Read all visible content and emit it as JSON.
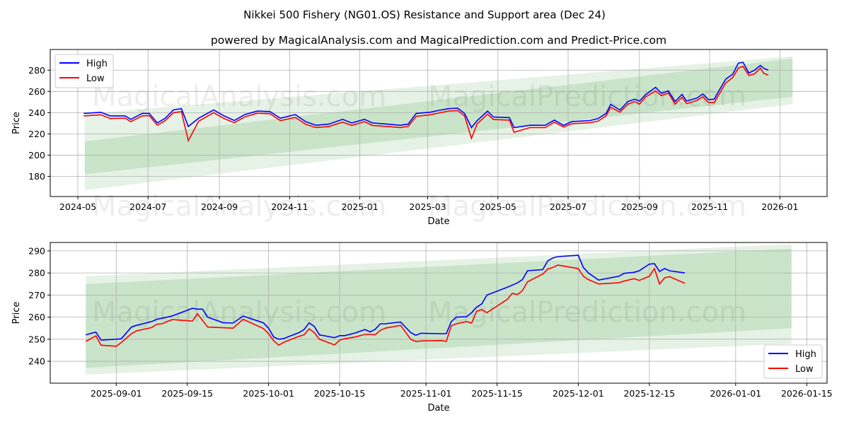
{
  "title": "Nikkei 500 Fishery (NG01.OS) Resistance and Support area (Dec 24)",
  "subtitle": "powered by MagicalAnalysis.com and MagicalPrediction.com and Predict-Price.com",
  "watermarks": [
    "MagicalAnalysis.com",
    "MagicalPrediction.com"
  ],
  "colors": {
    "high": "#0000ff",
    "low": "#ff0000",
    "band": "#008000"
  },
  "chart_data": [
    {
      "type": "line",
      "xlabel": "Date",
      "ylabel": "Price",
      "xlim": [
        "2024-04-07",
        "2026-02-11"
      ],
      "ylim": [
        161,
        299.5
      ],
      "yticks": [
        180,
        200,
        220,
        240,
        260,
        280
      ],
      "xticks": [
        "2024-05",
        "2024-07",
        "2024-09",
        "2024-11",
        "2025-01",
        "2025-03",
        "2025-05",
        "2025-07",
        "2025-09",
        "2025-11",
        "2026-01"
      ],
      "grid": true,
      "legend": {
        "position": "top-left",
        "entries": [
          "High",
          "Low"
        ]
      },
      "bands": {
        "dates": [
          "2024-05-07",
          "2026-01-12"
        ],
        "outer_upper": [
          239,
          293
        ],
        "inner_upper": [
          213,
          291
        ],
        "inner_lower": [
          182,
          255
        ],
        "outer_lower": [
          167,
          248
        ]
      },
      "series_points": [
        [
          "2024-05-06",
          239.3,
          237
        ],
        [
          "2024-05-21",
          240.4,
          238
        ],
        [
          "2024-05-29",
          237,
          234.5
        ],
        [
          "2024-06-11",
          237,
          234.8
        ],
        [
          "2024-06-16",
          233.7,
          231.5
        ],
        [
          "2024-06-26",
          239.3,
          237
        ],
        [
          "2024-07-02",
          239.3,
          237.2
        ],
        [
          "2024-07-09",
          230.3,
          228.2
        ],
        [
          "2024-07-16",
          234.8,
          232.5
        ],
        [
          "2024-07-23",
          242.6,
          240
        ],
        [
          "2024-07-30",
          243.8,
          241
        ],
        [
          "2024-08-05",
          227,
          213.6
        ],
        [
          "2024-08-14",
          234.8,
          232
        ],
        [
          "2024-08-27",
          242.6,
          240
        ],
        [
          "2024-09-05",
          237,
          234.5
        ],
        [
          "2024-09-14",
          232.6,
          230.5
        ],
        [
          "2024-09-23",
          238.2,
          236
        ],
        [
          "2024-10-04",
          241.5,
          239.5
        ],
        [
          "2024-10-15",
          241,
          239
        ],
        [
          "2024-10-24",
          234.8,
          232.5
        ],
        [
          "2024-11-06",
          238.2,
          235.5
        ],
        [
          "2024-11-15",
          231.5,
          229
        ],
        [
          "2024-11-24",
          228.1,
          226
        ],
        [
          "2024-12-05",
          229.2,
          227
        ],
        [
          "2024-12-17",
          233.7,
          231
        ],
        [
          "2024-12-25",
          230.3,
          228
        ],
        [
          "2025-01-05",
          233.7,
          231.5
        ],
        [
          "2025-01-12",
          230.3,
          228
        ],
        [
          "2025-01-25",
          229.2,
          227
        ],
        [
          "2025-02-05",
          228.1,
          226
        ],
        [
          "2025-02-12",
          229.2,
          227
        ],
        [
          "2025-02-19",
          239.3,
          236.5
        ],
        [
          "2025-03-03",
          240.4,
          238
        ],
        [
          "2025-03-10",
          242,
          239.5
        ],
        [
          "2025-03-19",
          243.8,
          241.5
        ],
        [
          "2025-03-27",
          244.2,
          242
        ],
        [
          "2025-04-02",
          239.3,
          237
        ],
        [
          "2025-04-08",
          225.9,
          215.8
        ],
        [
          "2025-04-13",
          232.6,
          229.5
        ],
        [
          "2025-04-22",
          241.5,
          238.5
        ],
        [
          "2025-04-27",
          235.9,
          233.5
        ],
        [
          "2025-05-11",
          235.3,
          233
        ],
        [
          "2025-05-15",
          225.9,
          221.5
        ],
        [
          "2025-05-29",
          228.1,
          226
        ],
        [
          "2025-06-11",
          228.1,
          226
        ],
        [
          "2025-06-19",
          233,
          231
        ],
        [
          "2025-06-27",
          228.1,
          226.5
        ],
        [
          "2025-07-04",
          231.5,
          229.5
        ],
        [
          "2025-07-20",
          232.6,
          230.5
        ],
        [
          "2025-07-27",
          234.4,
          232
        ],
        [
          "2025-08-03",
          239.3,
          237
        ],
        [
          "2025-08-07",
          247.8,
          245
        ],
        [
          "2025-08-15",
          242.6,
          240.5
        ],
        [
          "2025-08-22",
          250.5,
          248
        ],
        [
          "2025-08-28",
          252.7,
          250.5
        ],
        [
          "2025-09-01",
          250.9,
          248
        ],
        [
          "2025-09-06",
          256.7,
          254.5
        ],
        [
          "2025-09-15",
          263.9,
          260.5
        ],
        [
          "2025-09-20",
          258.3,
          256
        ],
        [
          "2025-09-26",
          260.5,
          258.5
        ],
        [
          "2025-10-02",
          250.5,
          248
        ],
        [
          "2025-10-08",
          257.2,
          254.5
        ],
        [
          "2025-10-12",
          250.9,
          248.5
        ],
        [
          "2025-10-21",
          253.8,
          251.5
        ],
        [
          "2025-10-26",
          257.6,
          255
        ],
        [
          "2025-10-31",
          252.3,
          249.5
        ],
        [
          "2025-11-05",
          252.7,
          249.5
        ],
        [
          "2025-11-09",
          260.5,
          257
        ],
        [
          "2025-11-15",
          271.7,
          268
        ],
        [
          "2025-11-21",
          276.2,
          273
        ],
        [
          "2025-11-26",
          286.7,
          282
        ],
        [
          "2025-11-30",
          287.4,
          283.6
        ],
        [
          "2025-12-05",
          277.3,
          275
        ],
        [
          "2025-12-10",
          280,
          276.5
        ],
        [
          "2025-12-15",
          284.5,
          282
        ],
        [
          "2025-12-18",
          281.8,
          277
        ],
        [
          "2025-12-22",
          280,
          275.3
        ]
      ]
    },
    {
      "type": "line",
      "xlabel": "Date",
      "ylabel": "Price",
      "xlim": [
        "2025-08-19",
        "2026-01-19"
      ],
      "ylim": [
        230.1,
        293.8
      ],
      "yticks": [
        240,
        250,
        260,
        270,
        280,
        290
      ],
      "xticks": [
        "2025-09-01",
        "2025-09-15",
        "2025-10-01",
        "2025-10-15",
        "2025-11-01",
        "2025-11-15",
        "2025-12-01",
        "2025-12-15",
        "2026-01-01",
        "2026-01-15"
      ],
      "grid": true,
      "legend": {
        "position": "bottom-right",
        "entries": [
          "High",
          "Low"
        ]
      },
      "bands": {
        "dates": [
          "2025-08-26",
          "2026-01-12"
        ],
        "outer_upper": [
          278.5,
          293
        ],
        "inner_upper": [
          275,
          291
        ],
        "inner_lower": [
          237,
          255
        ],
        "outer_lower": [
          234,
          248
        ]
      },
      "series_points": [
        [
          "2025-08-26",
          252,
          249
        ],
        [
          "2025-08-28",
          253.2,
          251.5
        ],
        [
          "2025-08-29",
          249.6,
          247.3
        ],
        [
          "2025-09-01",
          250,
          246.8
        ],
        [
          "2025-09-02",
          250.2,
          248.5
        ],
        [
          "2025-09-04",
          255.5,
          252.5
        ],
        [
          "2025-09-05",
          256.3,
          253.8
        ],
        [
          "2025-09-08",
          258,
          255.3
        ],
        [
          "2025-09-09",
          259,
          256.8
        ],
        [
          "2025-09-10",
          259.5,
          257
        ],
        [
          "2025-09-12",
          260.5,
          258.9
        ],
        [
          "2025-09-16",
          264,
          258.2
        ],
        [
          "2025-09-17",
          263.6,
          261.5
        ],
        [
          "2025-09-18",
          263.6,
          258.5
        ],
        [
          "2025-09-19",
          260,
          255.5
        ],
        [
          "2025-09-22",
          257.5,
          255.2
        ],
        [
          "2025-09-24",
          257.3,
          255
        ],
        [
          "2025-09-26",
          260.5,
          259
        ],
        [
          "2025-09-30",
          257.4,
          254.8
        ],
        [
          "2025-10-01",
          255,
          252.5
        ],
        [
          "2025-10-02",
          251,
          249.3
        ],
        [
          "2025-10-03",
          250,
          247.3
        ],
        [
          "2025-10-04",
          250.3,
          248.6
        ],
        [
          "2025-10-07",
          253,
          251.3
        ],
        [
          "2025-10-08",
          254.4,
          252
        ],
        [
          "2025-10-09",
          257.4,
          254.7
        ],
        [
          "2025-10-10",
          255.8,
          253
        ],
        [
          "2025-10-11",
          252,
          250
        ],
        [
          "2025-10-14",
          250.7,
          247.4
        ],
        [
          "2025-10-15",
          251.6,
          249.6
        ],
        [
          "2025-10-16",
          251.6,
          250.2
        ],
        [
          "2025-10-18",
          252.8,
          251
        ],
        [
          "2025-10-20",
          254.4,
          252.2
        ],
        [
          "2025-10-21",
          253.3,
          252.2
        ],
        [
          "2025-10-22",
          254.5,
          252
        ],
        [
          "2025-10-23",
          257,
          254
        ],
        [
          "2025-10-24",
          257,
          255
        ],
        [
          "2025-10-27",
          257.8,
          256.3
        ],
        [
          "2025-10-29",
          253,
          250
        ],
        [
          "2025-10-30",
          251.8,
          249
        ],
        [
          "2025-10-31",
          252.7,
          249.2
        ],
        [
          "2025-11-04",
          252.5,
          249.4
        ],
        [
          "2025-11-05",
          252.5,
          249
        ],
        [
          "2025-11-06",
          258,
          256.1
        ],
        [
          "2025-11-07",
          260,
          257
        ],
        [
          "2025-11-09",
          260.2,
          258
        ],
        [
          "2025-11-10",
          262,
          257.3
        ],
        [
          "2025-11-11",
          264.5,
          262.7
        ],
        [
          "2025-11-12",
          266,
          263.4
        ],
        [
          "2025-11-13",
          270,
          262
        ],
        [
          "2025-11-17",
          273.5,
          268
        ],
        [
          "2025-11-18",
          274.5,
          270.8
        ],
        [
          "2025-11-19",
          275.5,
          270.2
        ],
        [
          "2025-11-20",
          277,
          272
        ],
        [
          "2025-11-21",
          281,
          276
        ],
        [
          "2025-11-24",
          281.5,
          279.5
        ],
        [
          "2025-11-25",
          285.5,
          281.8
        ],
        [
          "2025-11-26",
          286.8,
          282.5
        ],
        [
          "2025-11-27",
          287.4,
          283.6
        ],
        [
          "2025-12-01",
          288,
          282
        ],
        [
          "2025-12-02",
          282.5,
          278.5
        ],
        [
          "2025-12-03",
          280,
          277
        ],
        [
          "2025-12-05",
          276.8,
          275
        ],
        [
          "2025-12-09",
          278.5,
          275.6
        ],
        [
          "2025-12-10",
          279.8,
          276.3
        ],
        [
          "2025-12-12",
          280.3,
          277.4
        ],
        [
          "2025-12-13",
          281,
          276.6
        ],
        [
          "2025-12-15",
          284,
          278.5
        ],
        [
          "2025-12-16",
          284.2,
          282
        ],
        [
          "2025-12-17",
          280.7,
          275
        ],
        [
          "2025-12-18",
          282,
          277.8
        ],
        [
          "2025-12-19",
          281,
          278.3
        ],
        [
          "2025-12-22",
          280,
          275.3
        ]
      ]
    }
  ]
}
